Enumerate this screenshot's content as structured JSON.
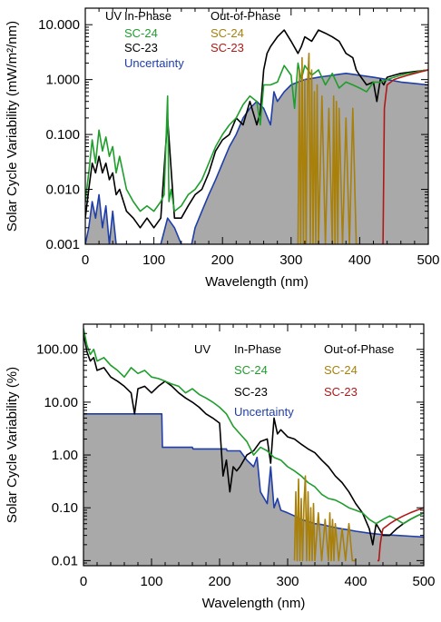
{
  "colors": {
    "sc24_in": "#1f9e2c",
    "sc23_in": "#000000",
    "uncertainty": "#1f3ea8",
    "sc24_out": "#a8800a",
    "sc23_out": "#b01818",
    "fill": "#a9a9a9"
  },
  "chart_data": [
    {
      "type": "line",
      "yscale": "log",
      "xlabel": "Wavelength (nm)",
      "ylabel": "Solar Cycle Variability (mW/m²/nm)",
      "xlim": [
        0,
        500
      ],
      "ylim": [
        0.001,
        20
      ],
      "xticks": [
        "0",
        "100",
        "200",
        "300",
        "400",
        "500"
      ],
      "yticks": [
        {
          "value": 0.001,
          "label": "0.001"
        },
        {
          "value": 0.01,
          "label": "0.010"
        },
        {
          "value": 0.1,
          "label": "0.100"
        },
        {
          "value": 1,
          "label": "1.000"
        },
        {
          "value": 10,
          "label": "10.000"
        }
      ],
      "legend": {
        "region": "UV",
        "in_phase_title": "In-Phase",
        "out_phase_title": "Out-of-Phase",
        "sc24_in": "SC-24",
        "sc23_in": "SC-23",
        "sc24_out": "SC-24",
        "sc23_out": "SC-23",
        "uncertainty": "Uncertainty"
      },
      "series": [
        {
          "key": "sc24_in",
          "name": "SC-24",
          "x": [
            0,
            5,
            10,
            15,
            20,
            25,
            30,
            35,
            40,
            45,
            50,
            60,
            70,
            80,
            90,
            100,
            110,
            115,
            120,
            122,
            125,
            130,
            140,
            150,
            160,
            170,
            180,
            190,
            200,
            210,
            220,
            230,
            240,
            250,
            255,
            260,
            270,
            280,
            290,
            300,
            305,
            310,
            315,
            320,
            330,
            340,
            350,
            360,
            370,
            380,
            390,
            400,
            410,
            420,
            430,
            440,
            450,
            460,
            470,
            480,
            490,
            500
          ],
          "y": [
            0.006,
            0.02,
            0.08,
            0.03,
            0.12,
            0.05,
            0.09,
            0.04,
            0.06,
            0.02,
            0.04,
            0.01,
            0.006,
            0.004,
            0.005,
            0.004,
            0.006,
            0.008,
            0.5,
            0.006,
            0.01,
            0.004,
            0.005,
            0.008,
            0.01,
            0.015,
            0.03,
            0.06,
            0.1,
            0.15,
            0.2,
            0.35,
            0.5,
            0.4,
            0.15,
            0.8,
            0.8,
            0.9,
            1.8,
            1.2,
            0.3,
            2,
            1,
            1.8,
            1.2,
            1.5,
            0.8,
            1.3,
            0.7,
            0.9,
            0.8,
            0.7,
            0.6,
            0.9,
            0.9,
            1.0,
            1.1,
            1.2,
            1.3,
            1.35,
            1.45,
            1.5
          ]
        },
        {
          "key": "sc23_in",
          "name": "SC-23",
          "x": [
            0,
            5,
            10,
            15,
            20,
            25,
            30,
            35,
            40,
            45,
            50,
            60,
            70,
            80,
            90,
            100,
            110,
            120,
            130,
            140,
            150,
            160,
            170,
            180,
            190,
            200,
            210,
            220,
            230,
            240,
            250,
            255,
            260,
            265,
            270,
            280,
            290,
            300,
            310,
            315,
            320,
            330,
            340,
            350,
            360,
            370,
            380,
            390,
            395,
            400,
            410,
            420,
            425,
            430,
            435,
            440,
            450,
            460,
            470,
            480,
            490,
            500
          ],
          "y": [
            0.003,
            0.01,
            0.03,
            0.02,
            0.04,
            0.02,
            0.03,
            0.015,
            0.02,
            0.008,
            0.01,
            0.004,
            0.003,
            0.002,
            0.003,
            0.002,
            0.003,
            0.2,
            0.003,
            0.003,
            0.005,
            0.008,
            0.01,
            0.02,
            0.05,
            0.08,
            0.1,
            0.2,
            0.15,
            0.4,
            0.15,
            0.25,
            1.5,
            3,
            4,
            6,
            8,
            5,
            3,
            4,
            6,
            5,
            8,
            7,
            6,
            5,
            3,
            2.5,
            1.5,
            1.2,
            0.8,
            0.9,
            0.4,
            1,
            0.8,
            1.1,
            1.2,
            1.3,
            1.35,
            1.4,
            1.45,
            1.5
          ]
        },
        {
          "key": "uncertainty",
          "name": "Uncertainty",
          "x": [
            0,
            5,
            10,
            15,
            20,
            25,
            30,
            35,
            40,
            45,
            50,
            60,
            70,
            80,
            90,
            100,
            110,
            120,
            130,
            140,
            150,
            155,
            160,
            170,
            180,
            190,
            200,
            210,
            220,
            230,
            240,
            250,
            260,
            270,
            275,
            280,
            290,
            300,
            310,
            320,
            330,
            340,
            350,
            360,
            370,
            380,
            390,
            400,
            420,
            440,
            460,
            480,
            500
          ],
          "y": [
            0.001,
            0.002,
            0.006,
            0.003,
            0.008,
            0.002,
            0.005,
            0.001,
            0.004,
            0.001,
            0.001,
            0.001,
            0.001,
            0.001,
            0.001,
            0.001,
            0.001,
            0.003,
            0.002,
            0.001,
            0.001,
            0.001,
            0.002,
            0.004,
            0.008,
            0.015,
            0.03,
            0.06,
            0.1,
            0.2,
            0.3,
            0.4,
            0.3,
            0.15,
            0.6,
            0.4,
            0.6,
            0.8,
            0.9,
            1.0,
            1.05,
            1.1,
            1.15,
            1.2,
            1.25,
            1.3,
            1.25,
            1.2,
            1.1,
            1.0,
            0.9,
            0.85,
            0.8
          ]
        },
        {
          "key": "sc24_out",
          "name": "SC-24",
          "x": [
            310,
            312,
            314,
            316,
            318,
            320,
            322,
            324,
            326,
            328,
            330,
            332,
            334,
            336,
            338,
            340,
            345,
            350,
            355,
            360,
            362,
            364,
            366,
            368,
            370,
            375,
            380,
            385,
            390,
            395,
            400
          ],
          "y": [
            0.001,
            1.5,
            0.001,
            2.5,
            0.001,
            1.0,
            0.001,
            0.8,
            3.0,
            0.001,
            1.5,
            0.001,
            0.6,
            0.001,
            0.8,
            0.001,
            0.5,
            0.001,
            0.3,
            0.001,
            0.5,
            0.001,
            0.4,
            0.001,
            0.3,
            0.001,
            0.2,
            0.001,
            0.3,
            0.001,
            0.001
          ]
        },
        {
          "key": "sc23_out",
          "name": "SC-23",
          "x": [
            432,
            434,
            436,
            438,
            440,
            450,
            460,
            470,
            480,
            490,
            500
          ],
          "y": [
            0.001,
            0.001,
            0.3,
            0.5,
            0.8,
            1.0,
            1.1,
            1.2,
            1.3,
            1.4,
            1.5
          ]
        }
      ]
    },
    {
      "type": "line",
      "yscale": "log",
      "xlabel": "Wavelength (nm)",
      "ylabel": "Solar Cycle Variability (%)",
      "xlim": [
        0,
        500
      ],
      "ylim": [
        0.008,
        300
      ],
      "xticks": [
        "0",
        "100",
        "200",
        "300",
        "400",
        "500"
      ],
      "yticks": [
        {
          "value": 0.01,
          "label": "0.01"
        },
        {
          "value": 0.1,
          "label": "0.10"
        },
        {
          "value": 1,
          "label": "1.00"
        },
        {
          "value": 10,
          "label": "10.00"
        },
        {
          "value": 100,
          "label": "100.00"
        }
      ],
      "legend": {
        "region": "UV",
        "in_phase_title": "In-Phase",
        "out_phase_title": "Out-of-Phase",
        "sc24_in": "SC-24",
        "sc23_in": "SC-23",
        "sc24_out": "SC-24",
        "sc23_out": "SC-23",
        "uncertainty": "Uncertainty"
      },
      "series": [
        {
          "key": "sc24_in",
          "name": "SC-24",
          "x": [
            0,
            5,
            10,
            15,
            20,
            30,
            40,
            50,
            60,
            70,
            80,
            90,
            100,
            110,
            120,
            130,
            140,
            150,
            160,
            170,
            180,
            190,
            200,
            210,
            220,
            230,
            240,
            250,
            260,
            270,
            280,
            290,
            300,
            310,
            320,
            330,
            340,
            350,
            360,
            370,
            380,
            390,
            400,
            410,
            420,
            430,
            440,
            450,
            460,
            470,
            480,
            490,
            500
          ],
          "y": [
            250,
            120,
            80,
            100,
            60,
            70,
            50,
            40,
            30,
            45,
            35,
            40,
            30,
            28,
            25,
            22,
            20,
            15,
            18,
            14,
            12,
            10,
            8,
            6,
            3.5,
            2.5,
            1.8,
            1.0,
            1.4,
            1.2,
            0.9,
            0.8,
            0.6,
            0.5,
            0.4,
            0.3,
            0.25,
            0.18,
            0.15,
            0.14,
            0.12,
            0.1,
            0.09,
            0.08,
            0.06,
            0.05,
            0.06,
            0.07,
            0.06,
            0.05,
            0.06,
            0.07,
            0.08
          ]
        },
        {
          "key": "sc23_in",
          "name": "SC-23",
          "x": [
            0,
            5,
            10,
            15,
            20,
            30,
            40,
            50,
            60,
            70,
            75,
            80,
            90,
            100,
            110,
            120,
            130,
            140,
            150,
            160,
            170,
            180,
            190,
            200,
            205,
            210,
            215,
            220,
            225,
            230,
            240,
            250,
            260,
            270,
            275,
            280,
            285,
            290,
            300,
            310,
            320,
            330,
            340,
            350,
            360,
            370,
            380,
            390,
            400,
            410,
            420,
            425,
            430,
            440,
            450,
            460,
            470,
            480,
            490,
            500
          ],
          "y": [
            200,
            90,
            60,
            70,
            40,
            45,
            30,
            25,
            20,
            15,
            6,
            18,
            20,
            15,
            20,
            25,
            20,
            15,
            12,
            10,
            8,
            6,
            5,
            4,
            0.4,
            0.8,
            0.2,
            0.6,
            0.5,
            0.6,
            1.0,
            1.2,
            1.8,
            2.0,
            0.7,
            5.0,
            2.5,
            3.0,
            2.2,
            2.0,
            1.6,
            1.3,
            1.1,
            0.8,
            0.6,
            0.4,
            0.3,
            0.2,
            0.12,
            0.08,
            0.04,
            0.02,
            0.05,
            0.03,
            0.03,
            0.04,
            0.05,
            0.06,
            0.07,
            0.08
          ]
        },
        {
          "key": "uncertainty",
          "name": "Uncertainty",
          "x": [
            0,
            115,
            116,
            160,
            161,
            210,
            211,
            230,
            240,
            250,
            255,
            260,
            270,
            275,
            280,
            285,
            290,
            300,
            310,
            320,
            330,
            340,
            350,
            360,
            370,
            380,
            390,
            400,
            420,
            440,
            460,
            480,
            500
          ],
          "y": [
            6.0,
            6.0,
            1.4,
            1.4,
            1.3,
            1.3,
            1.2,
            1.2,
            0.8,
            0.6,
            0.9,
            0.2,
            0.12,
            0.6,
            0.1,
            0.15,
            0.09,
            0.08,
            0.07,
            0.06,
            0.055,
            0.05,
            0.048,
            0.045,
            0.042,
            0.04,
            0.038,
            0.036,
            0.033,
            0.031,
            0.03,
            0.029,
            0.028
          ]
        },
        {
          "key": "sc24_out",
          "name": "SC-24",
          "x": [
            310,
            312,
            314,
            316,
            318,
            320,
            322,
            324,
            326,
            328,
            330,
            332,
            334,
            336,
            338,
            340,
            345,
            350,
            355,
            360,
            362,
            364,
            366,
            368,
            370,
            375,
            380,
            385,
            390,
            395,
            400
          ],
          "y": [
            0.01,
            0.2,
            0.01,
            0.35,
            0.01,
            0.15,
            0.01,
            0.12,
            0.4,
            0.01,
            0.2,
            0.01,
            0.1,
            0.01,
            0.12,
            0.01,
            0.08,
            0.01,
            0.06,
            0.01,
            0.08,
            0.01,
            0.06,
            0.01,
            0.05,
            0.01,
            0.04,
            0.01,
            0.05,
            0.01,
            0.01
          ]
        },
        {
          "key": "sc23_out",
          "name": "SC-23",
          "x": [
            432,
            434,
            436,
            438,
            440,
            450,
            460,
            470,
            480,
            490,
            500
          ],
          "y": [
            0.01,
            0.01,
            0.02,
            0.03,
            0.04,
            0.05,
            0.06,
            0.07,
            0.08,
            0.09,
            0.1
          ]
        }
      ]
    }
  ]
}
